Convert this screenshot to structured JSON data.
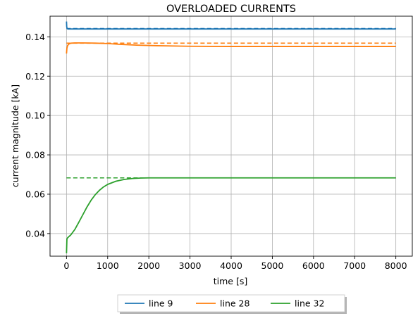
{
  "chart_data": {
    "type": "line",
    "title": "OVERLOADED CURRENTS",
    "xlabel": "time [s]",
    "ylabel": "current magnitude [kA]",
    "xlim": [
      -400,
      8400
    ],
    "ylim": [
      0.0285,
      0.1505
    ],
    "xticks": [
      0,
      1000,
      2000,
      3000,
      4000,
      5000,
      6000,
      7000,
      8000
    ],
    "xtick_labels": [
      "0",
      "1000",
      "2000",
      "3000",
      "4000",
      "5000",
      "6000",
      "7000",
      "8000"
    ],
    "yticks": [
      0.04,
      0.06,
      0.08,
      0.1,
      0.12,
      0.14
    ],
    "ytick_labels": [
      "0.04",
      "0.06",
      "0.08",
      "0.10",
      "0.12",
      "0.14"
    ],
    "grid": true,
    "legend": {
      "placement": "bottom-center, below axes",
      "columns": 3
    },
    "series": [
      {
        "name": "line 9",
        "color": "#1f77b4",
        "x": [
          0,
          5,
          15,
          30,
          60,
          100,
          200,
          500,
          1000,
          2000,
          4000,
          6000,
          8000
        ],
        "values": [
          0.1478,
          0.1452,
          0.1442,
          0.144,
          0.144,
          0.144,
          0.144,
          0.144,
          0.144,
          0.144,
          0.144,
          0.144,
          0.144
        ],
        "limit": {
          "x": [
            0,
            8000
          ],
          "values": [
            0.1442,
            0.1442
          ],
          "style": "dashed"
        }
      },
      {
        "name": "line 28",
        "color": "#ff7f0e",
        "x": [
          0,
          10,
          25,
          50,
          80,
          120,
          200,
          400,
          700,
          1000,
          1300,
          1700,
          2200,
          3000,
          4000,
          5000,
          6000,
          7000,
          8000
        ],
        "values": [
          0.1315,
          0.1342,
          0.1355,
          0.1362,
          0.1366,
          0.1368,
          0.1369,
          0.1369,
          0.1368,
          0.1366,
          0.1362,
          0.1358,
          0.1355,
          0.1352,
          0.1351,
          0.1351,
          0.1351,
          0.1351,
          0.1351
        ],
        "limit": {
          "x": [
            0,
            8000
          ],
          "values": [
            0.1368,
            0.1368
          ],
          "style": "dashed"
        }
      },
      {
        "name": "line 32",
        "color": "#2ca02c",
        "x": [
          0,
          10,
          25,
          50,
          100,
          200,
          300,
          400,
          500,
          600,
          700,
          800,
          900,
          1000,
          1200,
          1400,
          1600,
          1800,
          2000,
          2500,
          3000,
          4000,
          5000,
          6000,
          7000,
          8000
        ],
        "values": [
          0.03,
          0.0372,
          0.0378,
          0.0383,
          0.0392,
          0.042,
          0.0458,
          0.0497,
          0.0536,
          0.057,
          0.0598,
          0.062,
          0.0637,
          0.065,
          0.0666,
          0.0675,
          0.068,
          0.0682,
          0.0683,
          0.0683,
          0.0683,
          0.0683,
          0.0683,
          0.0683,
          0.0683,
          0.0683
        ],
        "limit": {
          "x": [
            0,
            8000
          ],
          "values": [
            0.0683,
            0.0683
          ],
          "style": "dashed"
        }
      }
    ]
  }
}
